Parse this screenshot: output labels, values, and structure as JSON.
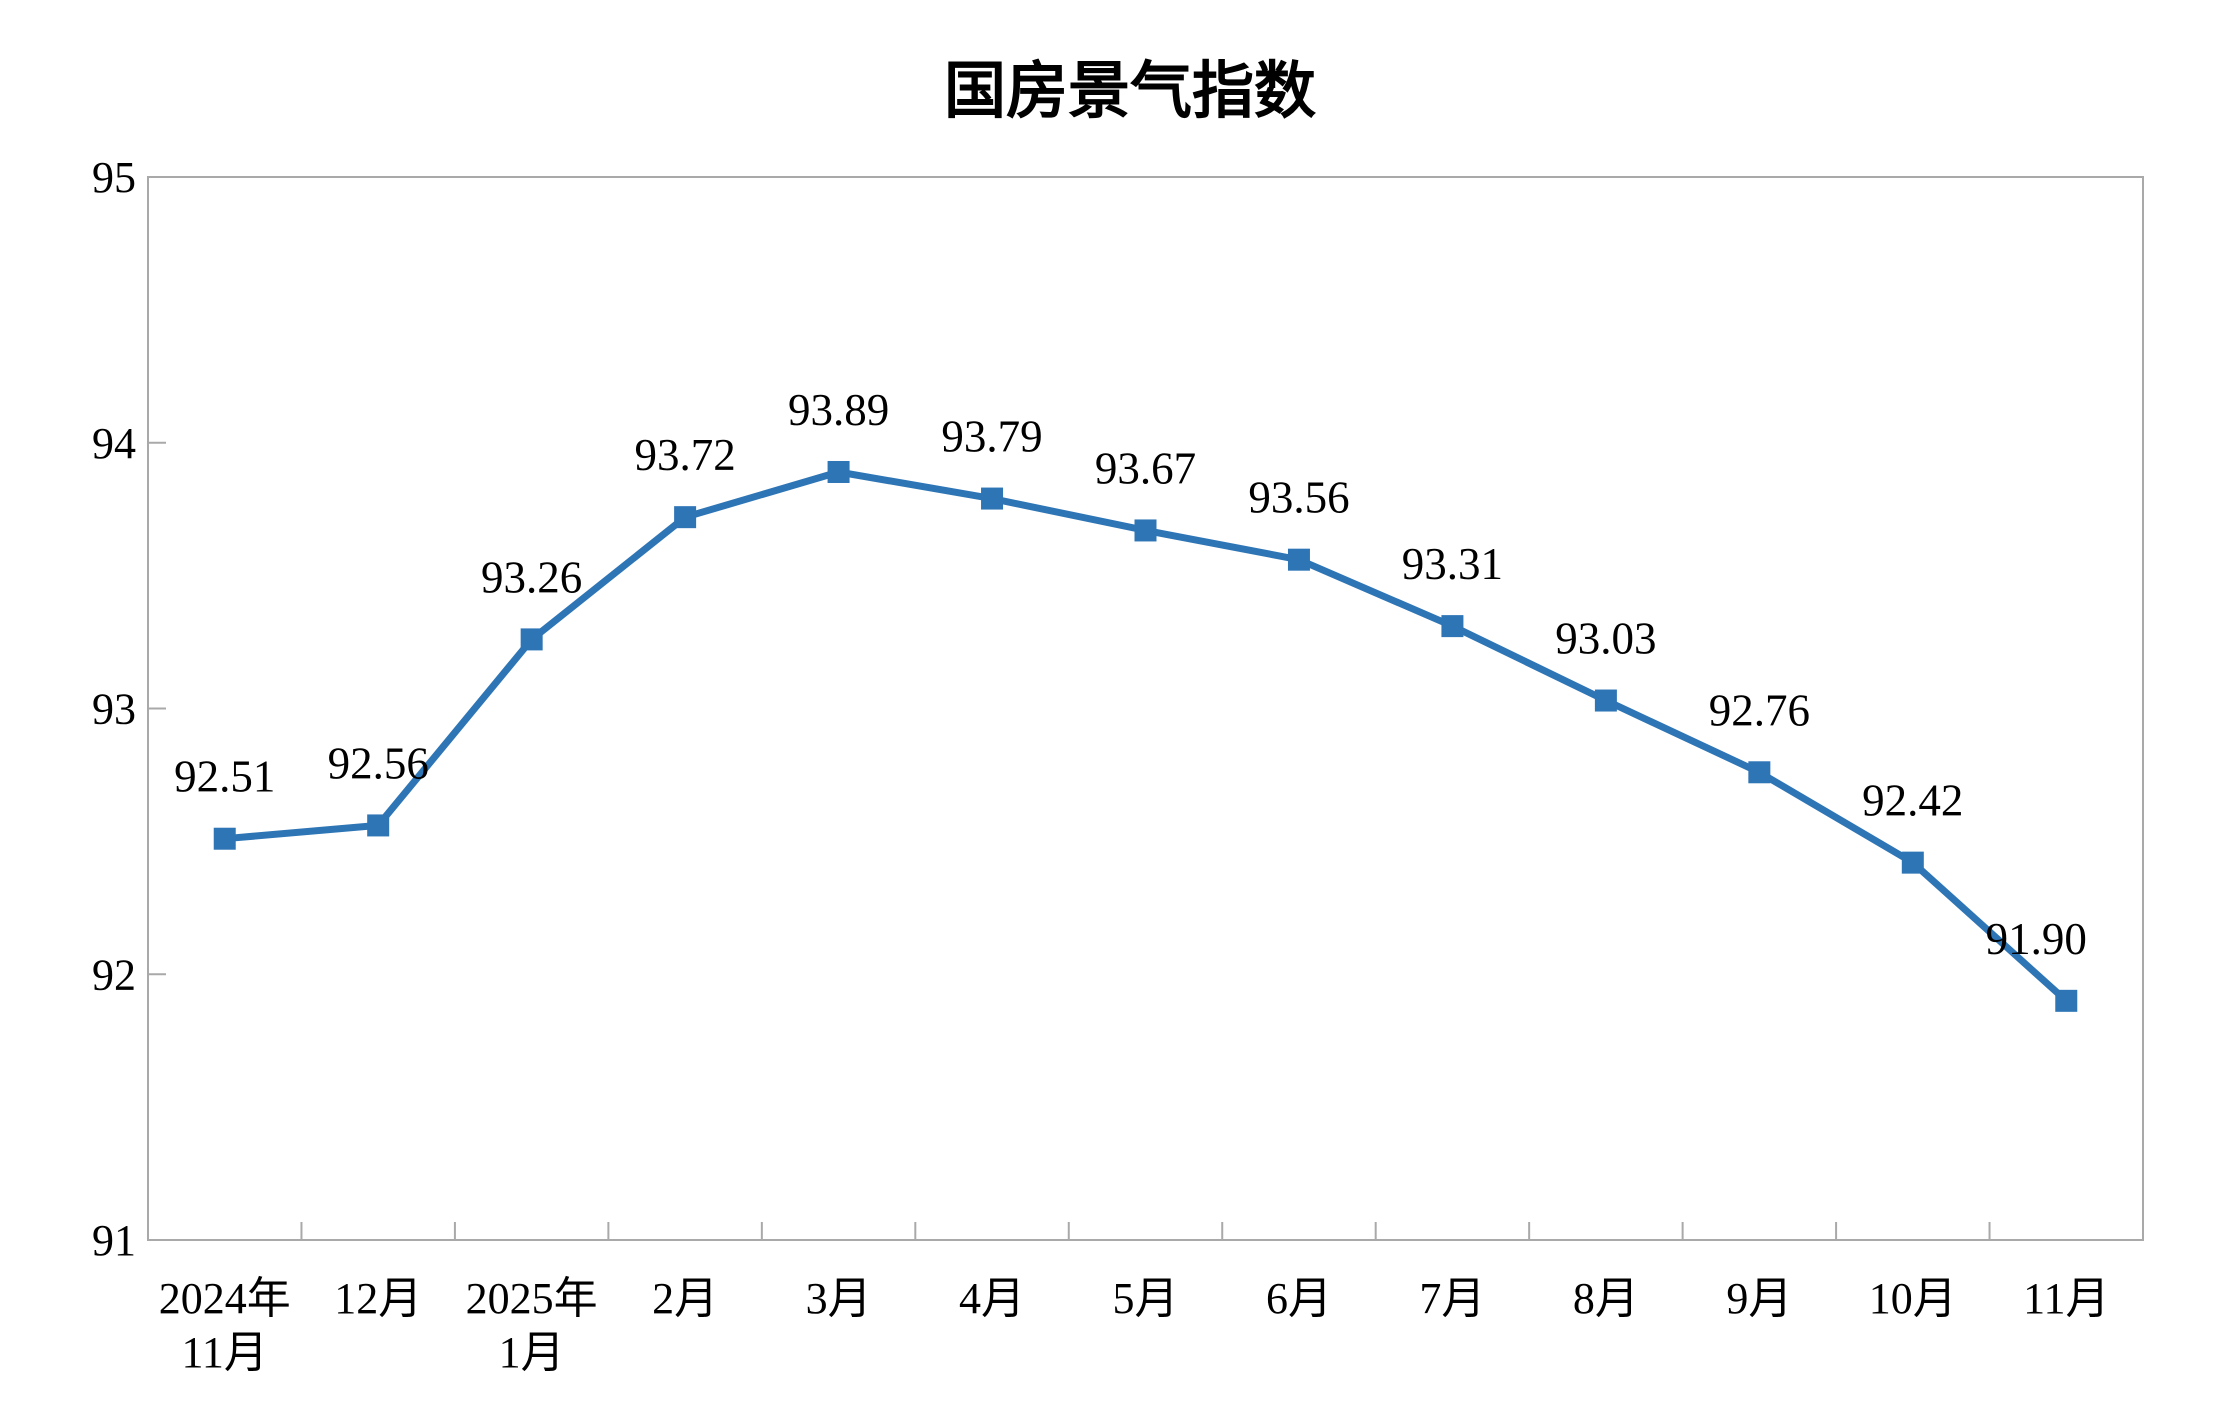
{
  "page": {
    "background": "#ffffff"
  },
  "chart_data": {
    "type": "line",
    "title": "国房景气指数",
    "categories": [
      "2024年\n11月",
      "12月",
      "2025年\n1月",
      "2月",
      "3月",
      "4月",
      "5月",
      "6月",
      "7月",
      "8月",
      "9月",
      "10月",
      "11月"
    ],
    "values": [
      92.51,
      92.56,
      93.26,
      93.72,
      93.89,
      93.79,
      93.67,
      93.56,
      93.31,
      93.03,
      92.76,
      92.42,
      91.9
    ],
    "point_labels": [
      "92.51",
      "92.56",
      "93.26",
      "93.72",
      "93.89",
      "93.79",
      "93.67",
      "93.56",
      "93.31",
      "93.03",
      "92.76",
      "92.42",
      "91.90"
    ],
    "ylim": [
      91,
      95
    ],
    "yticks": [
      91,
      92,
      93,
      94,
      95
    ],
    "ytick_labels": [
      "91",
      "92",
      "93",
      "94",
      "95"
    ],
    "xlabel": "",
    "ylabel": "",
    "grid": false,
    "legend": "none",
    "marker": "square",
    "series_color": "#2E75B6",
    "axis_color": "#A9A9A9",
    "text_color": "#000000",
    "layout_hints": {
      "data_labels_position": "above-points",
      "ticks_direction": "inside",
      "plot_border": "full-rectangle",
      "last_label_dx": -30
    }
  }
}
